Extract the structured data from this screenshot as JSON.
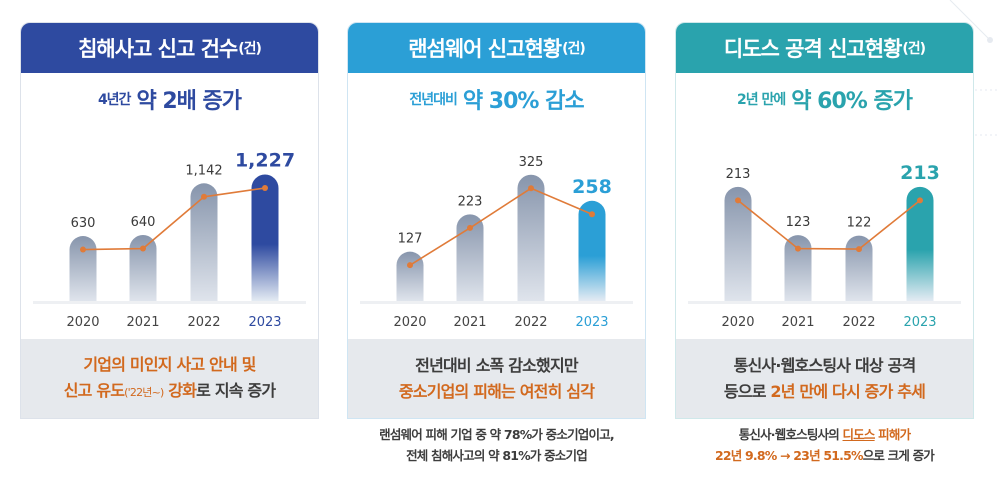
{
  "colors": {
    "card1_accent": "#2e4aa0",
    "card2_accent": "#2b9fd6",
    "card3_accent": "#2aa3ad",
    "line": "#e07b39",
    "highlight_text": "#d2691e",
    "bar_gray_top": "#8795ac",
    "bar_gray_bottom": "#dfe4ec"
  },
  "cards": [
    {
      "title": "침해사고 신고 건수",
      "unit": "(건)",
      "summary_prefix": "4년간",
      "summary_main": "약 2배 증가",
      "panel_line1": "기업의 미인지 사고 안내 및",
      "panel_line2_a": "신고 유도",
      "panel_line2_small": "('22년~)",
      "panel_line2_b": " 강화",
      "panel_line2_c": "로 지속 증가"
    },
    {
      "title": "랜섬웨어 신고현황",
      "unit": "(건)",
      "summary_prefix": "전년대비",
      "summary_main": "약 30% 감소",
      "panel_line1": "전년대비 소폭 감소했지만",
      "panel_line2": "중소기업의 피해는 여전히 심각",
      "note_line1": "랜섬웨어 피해 기업 중 약 78%가 중소기업이고,",
      "note_line2": "전체 침해사고의 약 81%가 중소기업"
    },
    {
      "title": "디도스 공격 신고현황",
      "unit": "(건)",
      "summary_prefix": "2년 만에",
      "summary_main": "약 60% 증가",
      "panel_line1": "통신사·웹호스팅사 대상 공격",
      "panel_line2_a": "등으로 ",
      "panel_line2_b": "2년 만에 다시 증가 추세",
      "note_line1_a": "통신사·웹호스팅사의 ",
      "note_line1_b": "디도스",
      "note_line1_c": " 피해가",
      "note_line2_a": "22년 9.8% → 23년 51.5%",
      "note_line2_b": "으로 크게 증가"
    }
  ],
  "chart_data": [
    {
      "type": "bar",
      "title": "침해사고 신고 건수(건)",
      "categories": [
        "2020",
        "2021",
        "2022",
        "2023"
      ],
      "values": [
        630,
        640,
        1142,
        1227
      ],
      "labels": [
        "630",
        "640",
        "1,142",
        "1,227"
      ],
      "overlay_line": true,
      "highlight_index": 3,
      "xlabel": "",
      "ylabel": "",
      "ylim": [
        0,
        1300
      ]
    },
    {
      "type": "bar",
      "title": "랜섬웨어 신고현황(건)",
      "categories": [
        "2020",
        "2021",
        "2022",
        "2023"
      ],
      "values": [
        127,
        223,
        325,
        258
      ],
      "labels": [
        "127",
        "223",
        "325",
        "258"
      ],
      "overlay_line": true,
      "highlight_index": 3,
      "xlabel": "",
      "ylabel": "",
      "ylim": [
        0,
        345
      ]
    },
    {
      "type": "bar",
      "title": "디도스 공격 신고현황(건)",
      "categories": [
        "2020",
        "2021",
        "2022",
        "2023"
      ],
      "values": [
        213,
        123,
        122,
        213
      ],
      "labels": [
        "213",
        "123",
        "122",
        "213"
      ],
      "overlay_line": true,
      "highlight_index": 3,
      "xlabel": "",
      "ylabel": "",
      "ylim": [
        0,
        250
      ]
    }
  ]
}
